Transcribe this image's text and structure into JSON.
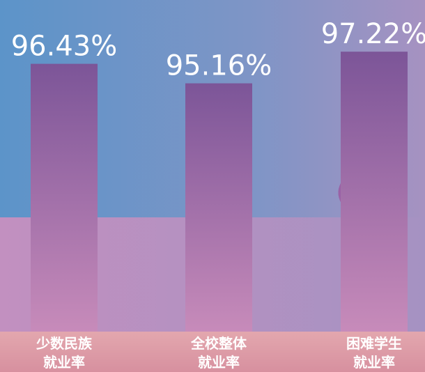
{
  "chart_data": {
    "type": "bar",
    "categories": [
      [
        "少数民族",
        "就业率"
      ],
      [
        "全校整体",
        "就业率"
      ],
      [
        "困难学生",
        "就业率"
      ]
    ],
    "values": [
      96.43,
      95.16,
      97.22
    ],
    "value_labels": [
      "96.43%",
      "95.16%",
      "97.22%"
    ],
    "ylim": [
      79,
      97.5
    ]
  }
}
